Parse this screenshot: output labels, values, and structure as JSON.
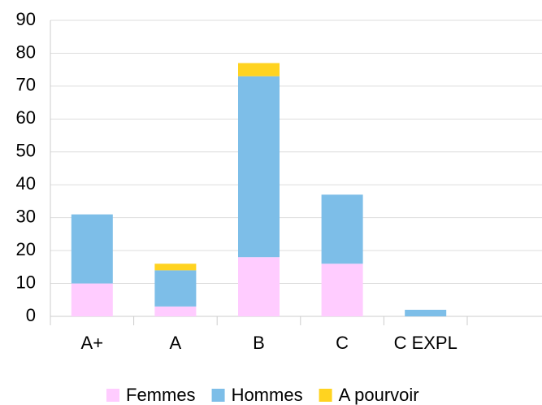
{
  "chart_data": {
    "type": "stacked_bar",
    "categories": [
      "A+",
      "A",
      "B",
      "C",
      "C EXPL",
      null
    ],
    "series": [
      {
        "name": "Femmes",
        "color": "#ffccff",
        "values": [
          10,
          3,
          18,
          16,
          0,
          null
        ]
      },
      {
        "name": "Hommes",
        "color": "#7dbee8",
        "values": [
          21,
          11,
          55,
          21,
          2,
          null
        ]
      },
      {
        "name": "A pourvoir",
        "color": "#ffd320",
        "values": [
          0,
          2,
          4,
          0,
          0,
          null
        ]
      }
    ],
    "ylim": [
      0,
      90
    ],
    "yticks": [
      0,
      10,
      20,
      30,
      40,
      50,
      60,
      70,
      80,
      90
    ],
    "grid": true,
    "legend": "bottom"
  }
}
